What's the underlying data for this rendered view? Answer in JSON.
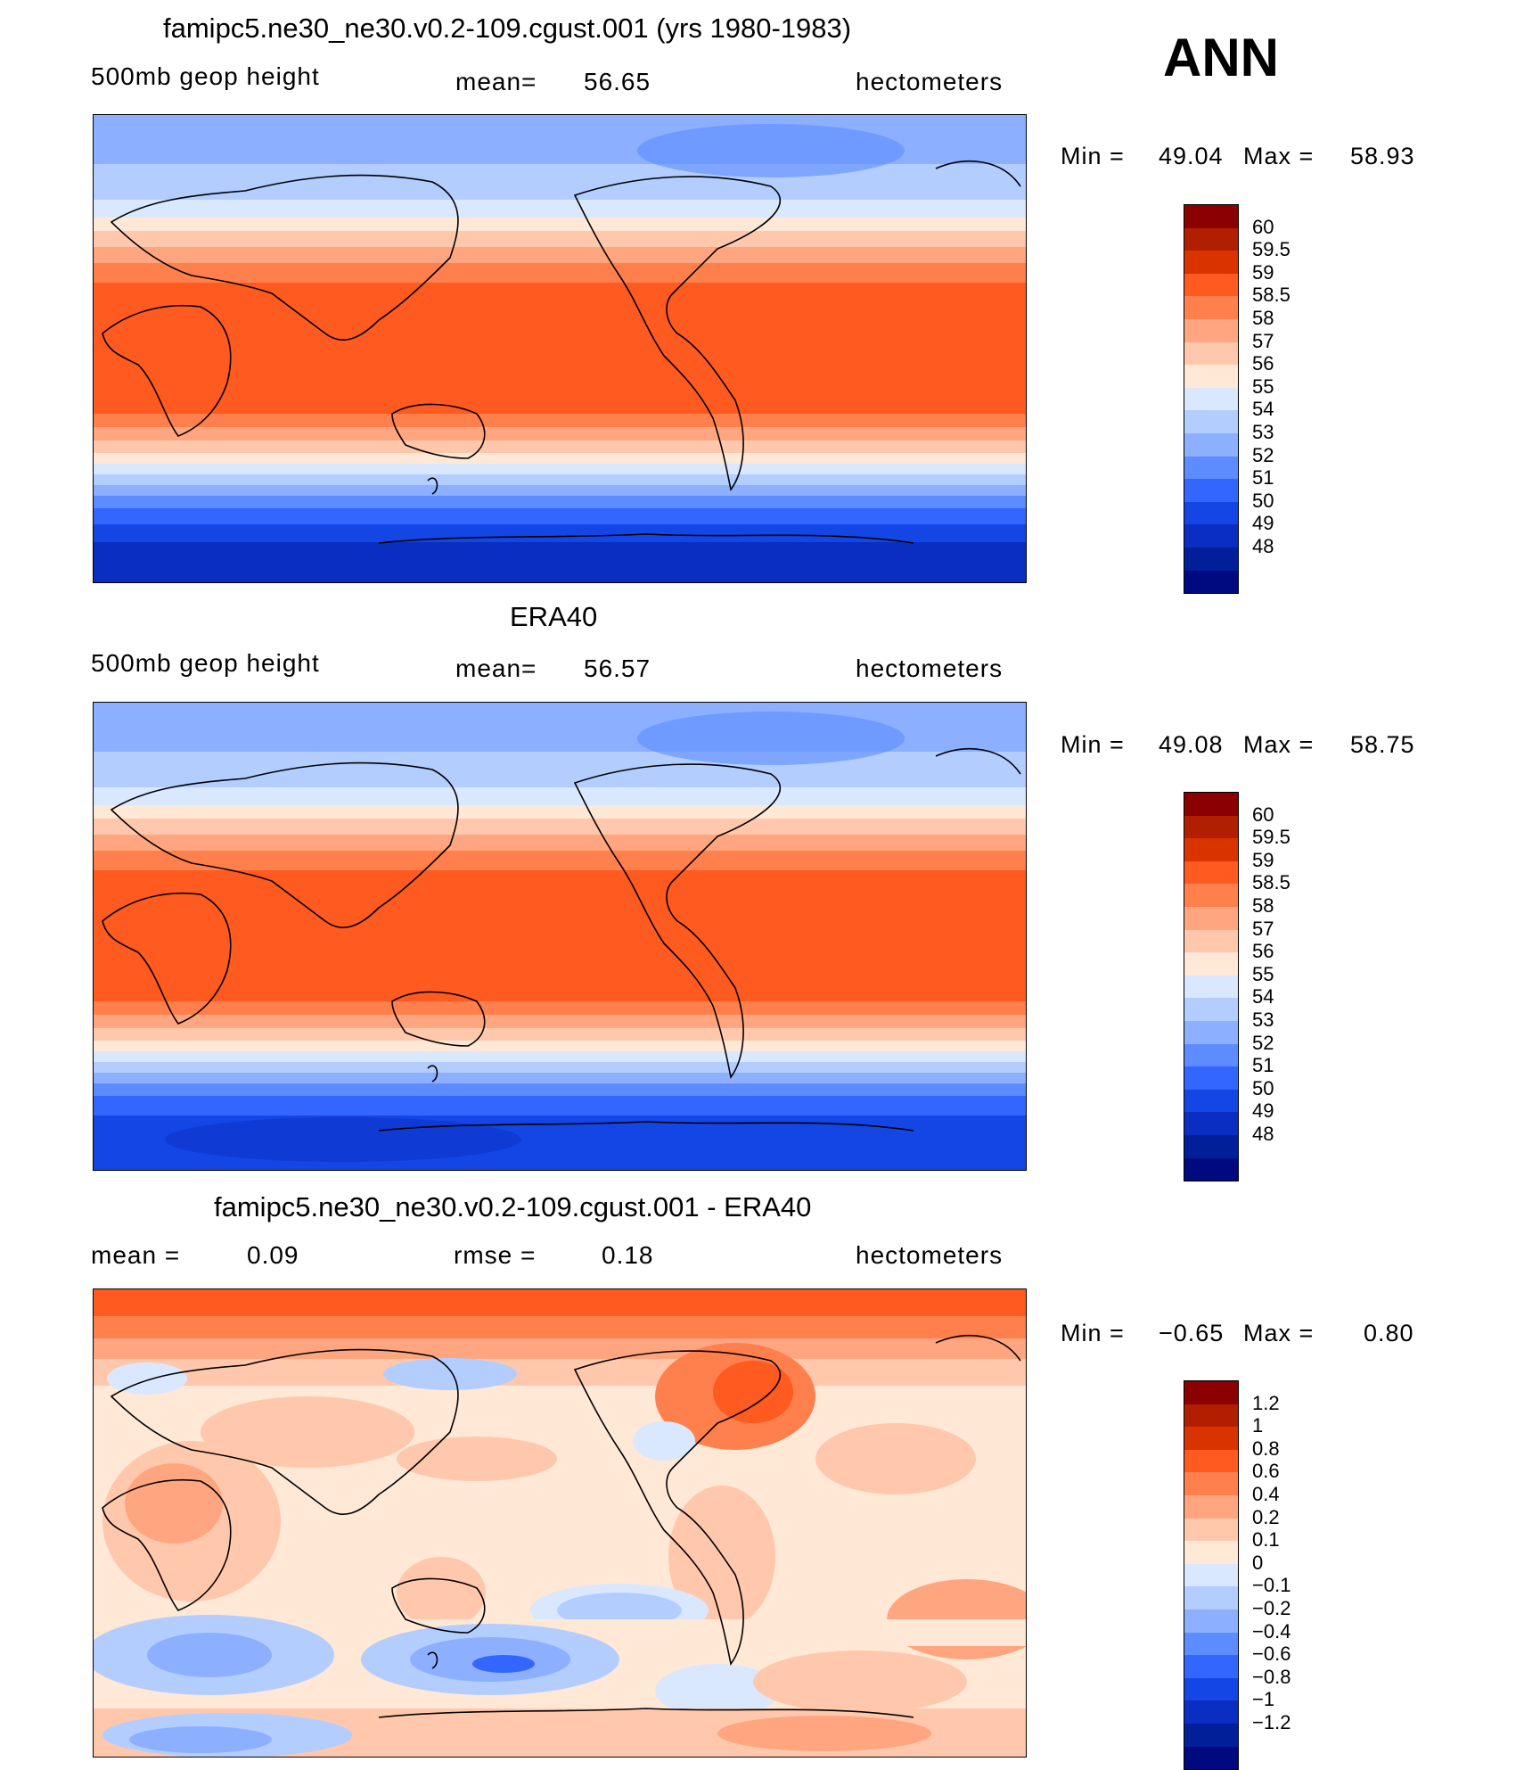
{
  "season": "ANN",
  "panels": [
    {
      "title": "famipc5.ne30_ne30.v0.2-109.cgust.001 (yrs 1980-1983)",
      "variable": "500mb geop height",
      "stat_label": "mean=",
      "stat_value": "56.65",
      "units": "hectometers",
      "min_label": "Min =",
      "min_value": "49.04",
      "max_label": "Max =",
      "max_value": "58.93",
      "colorbar": {
        "colors": [
          "#8b0000",
          "#b21f00",
          "#d93300",
          "#ff5a1f",
          "#ff7f4d",
          "#ffa680",
          "#ffc8ad",
          "#ffe8d6",
          "#d9e8ff",
          "#b3cdff",
          "#8cb0ff",
          "#5c8cff",
          "#3366ff",
          "#1446e6",
          "#0a2ec2",
          "#001f99",
          "#000a80"
        ],
        "labels": [
          "60",
          "59.5",
          "59",
          "58.5",
          "58",
          "57",
          "56",
          "55",
          "54",
          "53",
          "52",
          "51",
          "50",
          "49",
          "48"
        ]
      }
    },
    {
      "title": "ERA40",
      "variable": "500mb geop height",
      "stat_label": "mean=",
      "stat_value": "56.57",
      "units": "hectometers",
      "min_label": "Min =",
      "min_value": "49.08",
      "max_label": "Max =",
      "max_value": "58.75",
      "colorbar": {
        "colors": [
          "#8b0000",
          "#b21f00",
          "#d93300",
          "#ff5a1f",
          "#ff7f4d",
          "#ffa680",
          "#ffc8ad",
          "#ffe8d6",
          "#d9e8ff",
          "#b3cdff",
          "#8cb0ff",
          "#5c8cff",
          "#3366ff",
          "#1446e6",
          "#0a2ec2",
          "#001f99",
          "#000a80"
        ],
        "labels": [
          "60",
          "59.5",
          "59",
          "58.5",
          "58",
          "57",
          "56",
          "55",
          "54",
          "53",
          "52",
          "51",
          "50",
          "49",
          "48"
        ]
      }
    },
    {
      "title": "famipc5.ne30_ne30.v0.2-109.cgust.001 - ERA40",
      "variable": "mean =",
      "stat_label": "rmse =",
      "stat_value": "0.18",
      "mean_value": "0.09",
      "units": "hectometers",
      "min_label": "Min =",
      "min_value": "−0.65",
      "max_label": "Max =",
      "max_value": "0.80",
      "colorbar": {
        "colors": [
          "#8b0000",
          "#b21f00",
          "#d93300",
          "#ff5a1f",
          "#ff7f4d",
          "#ffa680",
          "#ffc8ad",
          "#ffe8d6",
          "#d9e8ff",
          "#b3cdff",
          "#8cb0ff",
          "#5c8cff",
          "#3366ff",
          "#1446e6",
          "#0a2ec2",
          "#001f99",
          "#000a80"
        ],
        "labels": [
          "1.2",
          "1",
          "0.8",
          "0.6",
          "0.4",
          "0.2",
          "0.1",
          "0",
          "−0.1",
          "−0.2",
          "−0.4",
          "−0.6",
          "−0.8",
          "−1",
          "−1.2"
        ]
      }
    }
  ]
}
